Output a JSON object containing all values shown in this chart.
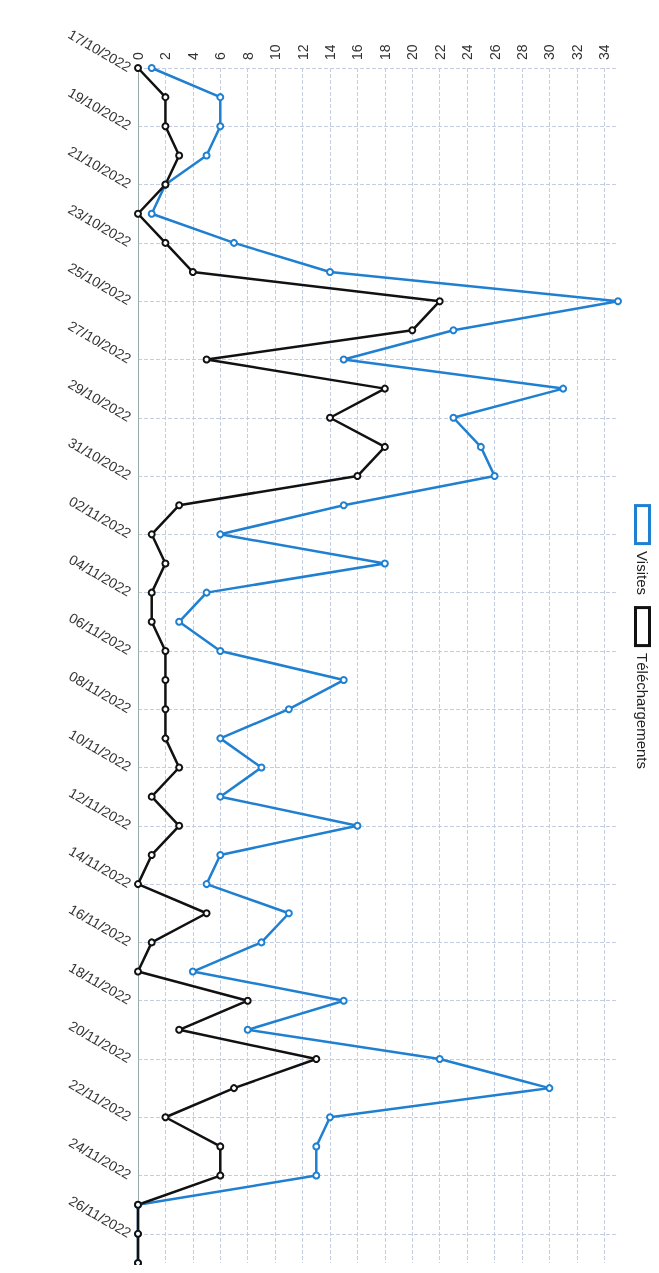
{
  "chart_data": {
    "type": "line",
    "categories": [
      "17/10/2022",
      null,
      "19/10/2022",
      null,
      "21/10/2022",
      null,
      "23/10/2022",
      null,
      "25/10/2022",
      null,
      "27/10/2022",
      null,
      "29/10/2022",
      null,
      "31/10/2022",
      null,
      "02/11/2022",
      null,
      "04/11/2022",
      null,
      "06/11/2022",
      null,
      "08/11/2022",
      null,
      "10/11/2022",
      null,
      "12/11/2022",
      null,
      "14/11/2022",
      null,
      "16/11/2022",
      null,
      "18/11/2022",
      null,
      "20/11/2022",
      null,
      "22/11/2022",
      null,
      "24/11/2022",
      null,
      "26/11/2022",
      null
    ],
    "series": [
      {
        "name": "Visites",
        "color": "#1f7fd0",
        "values": [
          1,
          6,
          6,
          5,
          2,
          1,
          7,
          14,
          35,
          23,
          15,
          31,
          23,
          25,
          26,
          15,
          6,
          18,
          5,
          3,
          6,
          15,
          11,
          6,
          9,
          6,
          16,
          6,
          5,
          11,
          9,
          4,
          15,
          8,
          22,
          30,
          14,
          13,
          13,
          0,
          0,
          0
        ]
      },
      {
        "name": "Téléchargements",
        "color": "#111111",
        "values": [
          0,
          2,
          2,
          3,
          2,
          0,
          2,
          4,
          22,
          20,
          5,
          18,
          14,
          18,
          16,
          3,
          1,
          2,
          1,
          1,
          2,
          2,
          2,
          2,
          3,
          1,
          3,
          1,
          0,
          5,
          1,
          0,
          8,
          3,
          13,
          7,
          2,
          6,
          6,
          0,
          0,
          0
        ]
      }
    ],
    "orientation": "horizontal",
    "xlim": [
      0,
      35
    ],
    "xticks": [
      0,
      2,
      4,
      6,
      8,
      10,
      12,
      14,
      16,
      18,
      20,
      22,
      24,
      26,
      28,
      30,
      32,
      34
    ],
    "grid": true,
    "legend": "right",
    "marker": "circle",
    "line_style": "solid"
  }
}
